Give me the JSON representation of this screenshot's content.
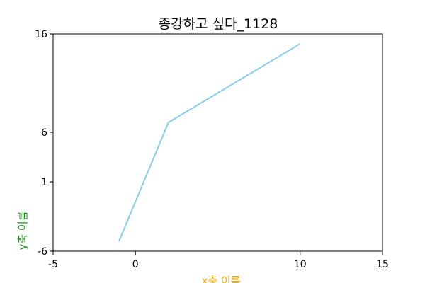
{
  "chart_data": {
    "type": "line",
    "title": "종강하고 싶다_1128",
    "xlabel": "x축 이름",
    "ylabel": "y축 이름",
    "xlabel_color": "#FFA500",
    "ylabel_color": "#228B22",
    "line_color": "#87CEEB",
    "xlim": [
      -5,
      15
    ],
    "ylim": [
      -6,
      16
    ],
    "x_ticks": [
      -5,
      0,
      10,
      15
    ],
    "y_ticks": [
      -6,
      1,
      6,
      16
    ],
    "grid": false,
    "series": [
      {
        "x": [
          -1,
          2,
          10
        ],
        "y": [
          -5,
          7,
          15
        ]
      }
    ]
  }
}
